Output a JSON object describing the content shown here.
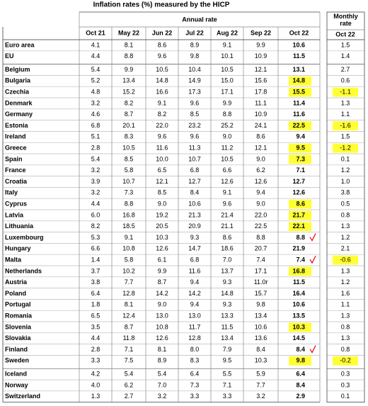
{
  "title": "Inflation rates (%) measured by the HICP",
  "annual_header": "Annual rate",
  "monthly_header": "Monthly rate",
  "columns": [
    "Oct 21",
    "May 22",
    "Jun 22",
    "Jul 22",
    "Aug 22",
    "Sep 22",
    "Oct 22"
  ],
  "monthly_column": "Oct 22",
  "table": {
    "groups": [
      [
        {
          "country": "Euro area",
          "values": [
            "4.1",
            "8.1",
            "8.6",
            "8.9",
            "9.1",
            "9.9",
            "10.6"
          ],
          "monthly": "1.5"
        },
        {
          "country": "EU",
          "values": [
            "4.4",
            "8.8",
            "9.6",
            "9.8",
            "10.1",
            "10.9",
            "11.5"
          ],
          "monthly": "1.4"
        }
      ],
      [
        {
          "country": "Belgium",
          "values": [
            "5.4",
            "9.9",
            "10.5",
            "10.4",
            "10.5",
            "12.1",
            "13.1"
          ],
          "monthly": "2.7"
        },
        {
          "country": "Bulgaria",
          "values": [
            "5.2",
            "13.4",
            "14.8",
            "14.9",
            "15.0",
            "15.6",
            "14.8"
          ],
          "monthly": "0.6",
          "highlight_annual": true
        },
        {
          "country": "Czechia",
          "values": [
            "4.8",
            "15.2",
            "16.6",
            "17.3",
            "17.1",
            "17.8",
            "15.5"
          ],
          "monthly": "-1.1",
          "highlight_annual": true,
          "highlight_monthly": true
        },
        {
          "country": "Denmark",
          "values": [
            "3.2",
            "8.2",
            "9.1",
            "9.6",
            "9.9",
            "11.1",
            "11.4"
          ],
          "monthly": "1.3"
        },
        {
          "country": "Germany",
          "values": [
            "4.6",
            "8.7",
            "8.2",
            "8.5",
            "8.8",
            "10.9",
            "11.6"
          ],
          "monthly": "1.1"
        },
        {
          "country": "Estonia",
          "values": [
            "6.8",
            "20.1",
            "22.0",
            "23.2",
            "25.2",
            "24.1",
            "22.5"
          ],
          "monthly": "-1.6",
          "highlight_annual": true,
          "highlight_monthly": true
        },
        {
          "country": "Ireland",
          "values": [
            "5.1",
            "8.3",
            "9.6",
            "9.6",
            "9.0",
            "8.6",
            "9.4"
          ],
          "monthly": "1.5"
        },
        {
          "country": "Greece",
          "values": [
            "2.8",
            "10.5",
            "11.6",
            "11.3",
            "11.2",
            "12.1",
            "9.5"
          ],
          "monthly": "-1.2",
          "highlight_annual": true,
          "highlight_monthly": true
        },
        {
          "country": "Spain",
          "values": [
            "5.4",
            "8.5",
            "10.0",
            "10.7",
            "10.5",
            "9.0",
            "7.3"
          ],
          "monthly": "0.1",
          "highlight_annual": true
        },
        {
          "country": "France",
          "values": [
            "3.2",
            "5.8",
            "6.5",
            "6.8",
            "6.6",
            "6.2",
            "7.1"
          ],
          "monthly": "1.2"
        },
        {
          "country": "Croatia",
          "values": [
            "3.9",
            "10.7",
            "12.1",
            "12.7",
            "12.6",
            "12.6",
            "12.7"
          ],
          "monthly": "1.0"
        },
        {
          "country": "Italy",
          "values": [
            "3.2",
            "7.3",
            "8.5",
            "8.4",
            "9.1",
            "9.4",
            "12.6"
          ],
          "monthly": "3.8"
        },
        {
          "country": "Cyprus",
          "values": [
            "4.4",
            "8.8",
            "9.0",
            "10.6",
            "9.6",
            "9.0",
            "8.6"
          ],
          "monthly": "0.5",
          "highlight_annual": true
        },
        {
          "country": "Latvia",
          "values": [
            "6.0",
            "16.8",
            "19.2",
            "21.3",
            "21.4",
            "22.0",
            "21.7"
          ],
          "monthly": "0.8",
          "highlight_annual": true
        },
        {
          "country": "Lithuania",
          "values": [
            "8.2",
            "18.5",
            "20.5",
            "20.9",
            "21.1",
            "22.5",
            "22.1"
          ],
          "monthly": "1.3",
          "highlight_annual": true
        },
        {
          "country": "Luxembourg",
          "values": [
            "5.3",
            "9.1",
            "10.3",
            "9.3",
            "8.6",
            "8.8",
            "8.8"
          ],
          "monthly": "1.2",
          "checked": true
        },
        {
          "country": "Hungary",
          "values": [
            "6.6",
            "10.8",
            "12.6",
            "14.7",
            "18.6",
            "20.7",
            "21.9"
          ],
          "monthly": "2.1"
        },
        {
          "country": "Malta",
          "values": [
            "1.4",
            "5.8",
            "6.1",
            "6.8",
            "7.0",
            "7.4",
            "7.4"
          ],
          "monthly": "-0.6",
          "highlight_monthly": true,
          "checked": true
        },
        {
          "country": "Netherlands",
          "values": [
            "3.7",
            "10.2",
            "9.9",
            "11.6",
            "13.7",
            "17.1",
            "16.8"
          ],
          "monthly": "1.3",
          "highlight_annual": true
        },
        {
          "country": "Austria",
          "values": [
            "3.8",
            "7.7",
            "8.7",
            "9.4",
            "9.3",
            "11.0r",
            "11.5"
          ],
          "monthly": "1.2"
        },
        {
          "country": "Poland",
          "values": [
            "6.4",
            "12.8",
            "14.2",
            "14.2",
            "14.8",
            "15.7",
            "16.4"
          ],
          "monthly": "1.6"
        },
        {
          "country": "Portugal",
          "values": [
            "1.8",
            "8.1",
            "9.0",
            "9.4",
            "9.3",
            "9.8",
            "10.6"
          ],
          "monthly": "1.1"
        },
        {
          "country": "Romania",
          "values": [
            "6.5",
            "12.4",
            "13.0",
            "13.0",
            "13.3",
            "13.4",
            "13.5"
          ],
          "monthly": "1.3"
        },
        {
          "country": "Slovenia",
          "values": [
            "3.5",
            "8.7",
            "10.8",
            "11.7",
            "11.5",
            "10.6",
            "10.3"
          ],
          "monthly": "0.8",
          "highlight_annual": true
        },
        {
          "country": "Slovakia",
          "values": [
            "4.4",
            "11.8",
            "12.6",
            "12.8",
            "13.4",
            "13.6",
            "14.5"
          ],
          "monthly": "1.3"
        },
        {
          "country": "Finland",
          "values": [
            "2.8",
            "7.1",
            "8.1",
            "8.0",
            "7.9",
            "8.4",
            "8.4"
          ],
          "monthly": "0.8",
          "checked": true
        },
        {
          "country": "Sweden",
          "values": [
            "3.3",
            "7.5",
            "8.9",
            "8.3",
            "9.5",
            "10.3",
            "9.8"
          ],
          "monthly": "-0.2",
          "highlight_annual": true,
          "highlight_monthly": true
        }
      ],
      [
        {
          "country": "Iceland",
          "values": [
            "4.2",
            "5.4",
            "5.4",
            "6.4",
            "5.5",
            "5.9",
            "6.4"
          ],
          "monthly": "0.3"
        },
        {
          "country": "Norway",
          "values": [
            "4.0",
            "6.2",
            "7.0",
            "7.3",
            "7.1",
            "7.7",
            "8.4"
          ],
          "monthly": "0.3"
        },
        {
          "country": "Switzerland",
          "values": [
            "1.3",
            "2.7",
            "3.2",
            "3.3",
            "3.3",
            "3.2",
            "2.9"
          ],
          "monthly": "0.1"
        }
      ]
    ]
  }
}
